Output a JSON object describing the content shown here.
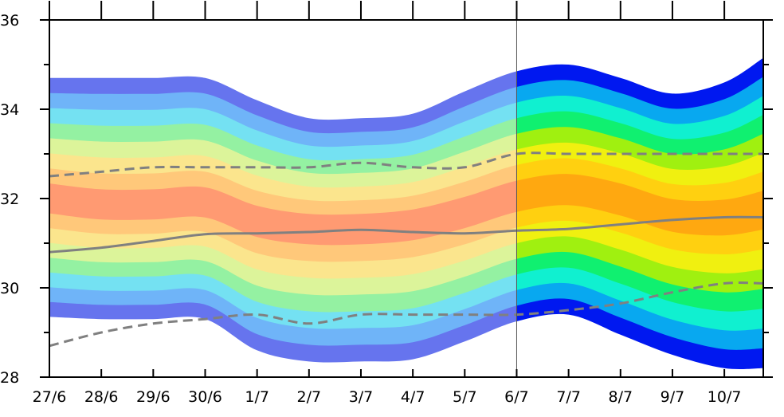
{
  "chart_data": {
    "type": "area",
    "title": "",
    "xlabel": "",
    "ylabel": "",
    "x_ticks": [
      "27/6",
      "28/6",
      "29/6",
      "30/6",
      "1/7",
      "2/7",
      "3/7",
      "4/7",
      "5/7",
      "6/7",
      "7/7",
      "8/7",
      "9/7",
      "10/7"
    ],
    "x_range": [
      0,
      13.75
    ],
    "ylim": [
      28,
      36
    ],
    "y_ticks": [
      28,
      30,
      32,
      34,
      36
    ],
    "y_tick_labels": [
      "28",
      "30",
      "32",
      "34",
      "36"
    ],
    "grid": false,
    "divider_x": 9,
    "colors": {
      "past": [
        "#6674ee",
        "#6fb4f8",
        "#74e1f2",
        "#94f1a2",
        "#dcf49a",
        "#fbe58d",
        "#ffc87a",
        "#ff9a72"
      ],
      "forecast": [
        "#0018f0",
        "#08a8f0",
        "#10f0d0",
        "#10f070",
        "#a0f010",
        "#f0f010",
        "#ffd010",
        "#ffa810"
      ],
      "median_line": "#808080",
      "bound_line": "#808080"
    },
    "envelope": {
      "x": [
        0,
        1,
        2,
        3,
        4,
        5,
        6,
        7,
        8,
        9,
        10,
        11,
        12,
        13,
        13.75
      ],
      "upper": [
        34.7,
        34.7,
        34.7,
        34.7,
        34.2,
        33.8,
        33.8,
        33.9,
        34.4,
        34.85,
        35.0,
        34.7,
        34.35,
        34.6,
        35.15
      ],
      "lower": [
        29.35,
        29.3,
        29.3,
        29.3,
        28.6,
        28.35,
        28.35,
        28.4,
        28.8,
        29.25,
        29.4,
        28.95,
        28.5,
        28.2,
        28.2
      ],
      "center": [
        32.0,
        31.85,
        31.85,
        31.9,
        31.5,
        31.35,
        31.35,
        31.45,
        31.7,
        32.05,
        32.2,
        32.0,
        31.65,
        31.6,
        31.75
      ]
    },
    "series": [
      {
        "name": "",
        "style": "dashed",
        "x": [
          0,
          1,
          2,
          3,
          4,
          5,
          6,
          7,
          8,
          9,
          10,
          11,
          12,
          13,
          13.75
        ],
        "values": [
          32.5,
          32.6,
          32.7,
          32.7,
          32.7,
          32.7,
          32.8,
          32.7,
          32.7,
          33.0,
          33.0,
          33.0,
          33.0,
          33.0,
          33.0
        ]
      },
      {
        "name": "",
        "style": "solid",
        "x": [
          0,
          1,
          2,
          3,
          4,
          5,
          6,
          7,
          8,
          9,
          10,
          11,
          12,
          13,
          13.75
        ],
        "values": [
          30.8,
          30.9,
          31.05,
          31.2,
          31.22,
          31.25,
          31.3,
          31.25,
          31.22,
          31.28,
          31.32,
          31.42,
          31.52,
          31.58,
          31.58
        ]
      },
      {
        "name": "",
        "style": "dashed",
        "x": [
          0,
          1,
          2,
          3,
          4,
          5,
          6,
          7,
          8,
          9,
          10,
          11,
          12,
          13,
          13.75
        ],
        "values": [
          28.7,
          29.0,
          29.2,
          29.3,
          29.4,
          29.2,
          29.4,
          29.4,
          29.4,
          29.4,
          29.5,
          29.65,
          29.9,
          30.1,
          30.1
        ]
      }
    ]
  }
}
